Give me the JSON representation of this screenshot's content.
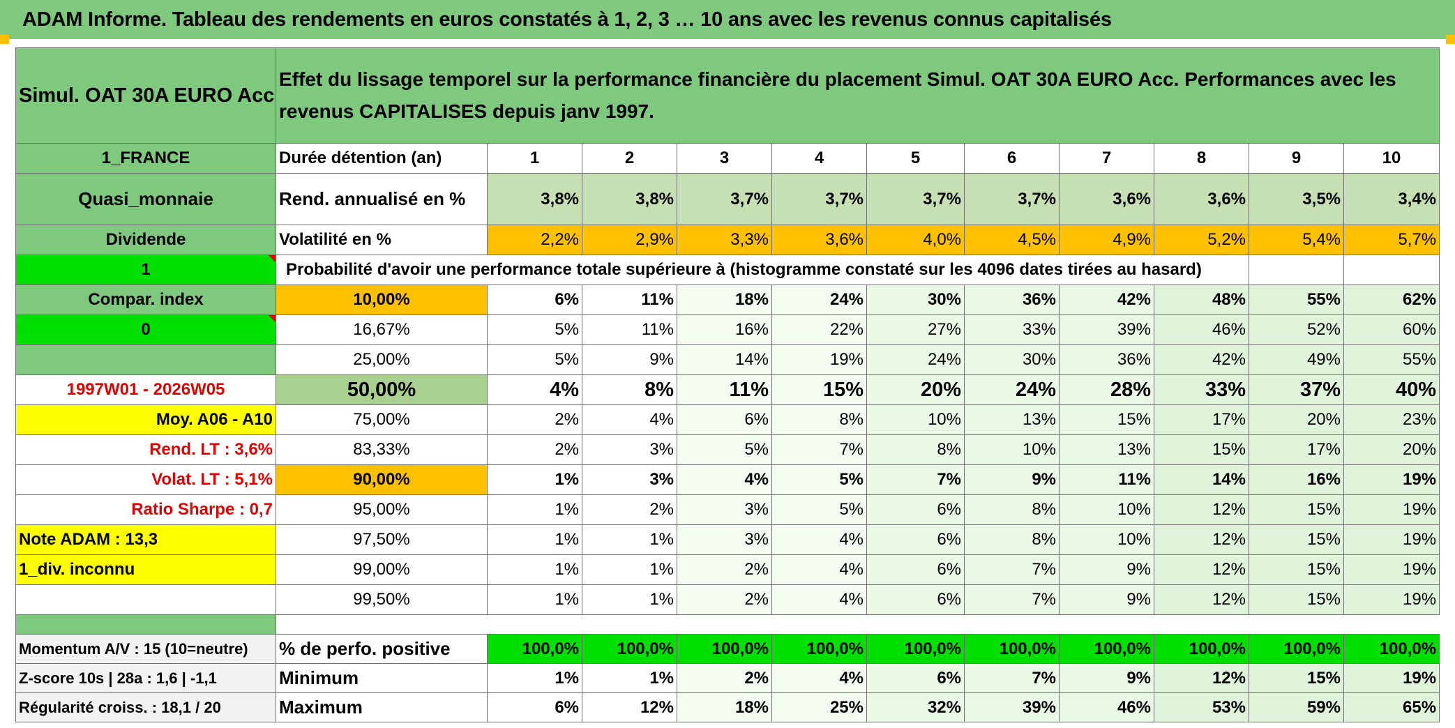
{
  "title": "ADAM Informe. Tableau des rendements en euros constatés à 1, 2, 3 … 10 ans avec les revenus connus capitalisés",
  "fund_name": "Simul. OAT 30A EURO Acc",
  "description": "Effet du lissage temporel sur la performance financière du placement Simul. OAT 30A EURO Acc. Performances avec les revenus CAPITALISES depuis janv 1997.",
  "left_labels": {
    "country": "1_FRANCE",
    "category": "Quasi_monnaie",
    "income": "Dividende",
    "flag_one": "1",
    "compar_index": "Compar. index",
    "flag_zero": "0",
    "period": "1997W01 - 2026W05",
    "moy": "Moy. A06 - A10",
    "rend_lt": "Rend. LT :   3,6%",
    "volat_lt": "Volat. LT :   5,1%",
    "sharpe": "Ratio Sharpe :   0,7",
    "note": "Note ADAM : 13,3",
    "div": "1_div. inconnu",
    "momentum": "Momentum A/V : 15 (10=neutre)",
    "zscore": "Z-score 10s | 28a : 1,6 | -1,1",
    "regularite": "Régularité croiss. : 18,1 / 20"
  },
  "header_row": {
    "label": "Durée détention (an)",
    "years": [
      "1",
      "2",
      "3",
      "4",
      "5",
      "6",
      "7",
      "8",
      "9",
      "10"
    ]
  },
  "rend_row": {
    "label": "Rend. annualisé en %",
    "values": [
      "3,8%",
      "3,8%",
      "3,7%",
      "3,7%",
      "3,7%",
      "3,7%",
      "3,6%",
      "3,6%",
      "3,5%",
      "3,4%"
    ]
  },
  "vol_row": {
    "label": "Volatilité en %",
    "values": [
      "2,2%",
      "2,9%",
      "3,3%",
      "3,6%",
      "4,0%",
      "4,5%",
      "4,9%",
      "5,2%",
      "5,4%",
      "5,7%"
    ]
  },
  "prob_title": "Probabilité d'avoir une performance totale supérieure à (histogramme constaté sur les 4096 dates tirées au hasard)",
  "prob_rows": [
    {
      "threshold": "10,00%",
      "values": [
        "6%",
        "11%",
        "18%",
        "24%",
        "30%",
        "36%",
        "42%",
        "48%",
        "55%",
        "62%"
      ]
    },
    {
      "threshold": "16,67%",
      "values": [
        "5%",
        "11%",
        "16%",
        "22%",
        "27%",
        "33%",
        "39%",
        "46%",
        "52%",
        "60%"
      ]
    },
    {
      "threshold": "25,00%",
      "values": [
        "5%",
        "9%",
        "14%",
        "19%",
        "24%",
        "30%",
        "36%",
        "42%",
        "49%",
        "55%"
      ]
    },
    {
      "threshold": "50,00%",
      "values": [
        "4%",
        "8%",
        "11%",
        "15%",
        "20%",
        "24%",
        "28%",
        "33%",
        "37%",
        "40%"
      ]
    },
    {
      "threshold": "75,00%",
      "values": [
        "2%",
        "4%",
        "6%",
        "8%",
        "10%",
        "13%",
        "15%",
        "17%",
        "20%",
        "23%"
      ]
    },
    {
      "threshold": "83,33%",
      "values": [
        "2%",
        "3%",
        "5%",
        "7%",
        "8%",
        "10%",
        "13%",
        "15%",
        "17%",
        "20%"
      ]
    },
    {
      "threshold": "90,00%",
      "values": [
        "1%",
        "3%",
        "4%",
        "5%",
        "7%",
        "9%",
        "11%",
        "14%",
        "16%",
        "19%"
      ]
    },
    {
      "threshold": "95,00%",
      "values": [
        "1%",
        "2%",
        "3%",
        "5%",
        "6%",
        "8%",
        "10%",
        "12%",
        "15%",
        "19%"
      ]
    },
    {
      "threshold": "97,50%",
      "values": [
        "1%",
        "1%",
        "3%",
        "4%",
        "6%",
        "8%",
        "10%",
        "12%",
        "15%",
        "19%"
      ]
    },
    {
      "threshold": "99,00%",
      "values": [
        "1%",
        "1%",
        "2%",
        "4%",
        "6%",
        "7%",
        "9%",
        "12%",
        "15%",
        "19%"
      ]
    },
    {
      "threshold": "99,50%",
      "values": [
        "1%",
        "1%",
        "2%",
        "4%",
        "6%",
        "7%",
        "9%",
        "12%",
        "15%",
        "19%"
      ]
    }
  ],
  "stats_rows": [
    {
      "label": "% de perfo. positive",
      "values": [
        "100,0%",
        "100,0%",
        "100,0%",
        "100,0%",
        "100,0%",
        "100,0%",
        "100,0%",
        "100,0%",
        "100,0%",
        "100,0%"
      ]
    },
    {
      "label": "Minimum",
      "values": [
        "1%",
        "1%",
        "2%",
        "4%",
        "6%",
        "7%",
        "9%",
        "12%",
        "15%",
        "19%"
      ]
    },
    {
      "label": "Maximum",
      "values": [
        "6%",
        "12%",
        "18%",
        "25%",
        "32%",
        "39%",
        "46%",
        "53%",
        "59%",
        "65%"
      ]
    }
  ],
  "colors": {
    "header_green": "#7fc97f",
    "light_green": "#c6e0b4",
    "bright_green": "#00e000",
    "orange": "#ffc000",
    "yellow": "#ffff00",
    "red_text": "#e00000"
  }
}
